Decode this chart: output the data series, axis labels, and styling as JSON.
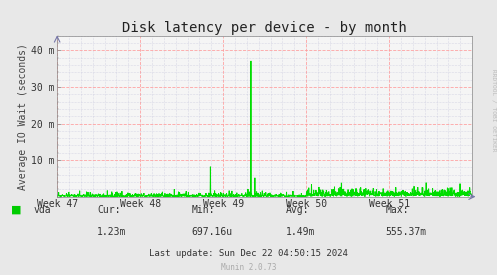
{
  "title": "Disk latency per device - by month",
  "ylabel": "Average IO Wait (seconds)",
  "background_color": "#e8e8e8",
  "plot_bg_color": "#f5f5f5",
  "line_color": "#00dd00",
  "grid_major_color": "#ff9999",
  "grid_minor_color": "#aaaacc",
  "ytick_labels": [
    "",
    "10 m",
    "20 m",
    "30 m",
    "40 m"
  ],
  "ytick_values": [
    0,
    0.01,
    0.02,
    0.03,
    0.04
  ],
  "ylim": [
    0,
    0.044
  ],
  "xtick_labels": [
    "Week 47",
    "Week 48",
    "Week 49",
    "Week 50",
    "Week 51"
  ],
  "xtick_positions": [
    0,
    168,
    336,
    504,
    672
  ],
  "xlim": [
    0,
    840
  ],
  "legend_label": "vda",
  "legend_color": "#00cc00",
  "stats_cur": "Cur:",
  "stats_cur_val": "1.23m",
  "stats_min": "Min:",
  "stats_min_val": "697.16u",
  "stats_avg": "Avg:",
  "stats_avg_val": "1.49m",
  "stats_max": "Max:",
  "stats_max_val": "555.37m",
  "last_update": "Last update: Sun Dec 22 04:50:15 2024",
  "munin_version": "Munin 2.0.73",
  "rrdtool_label": "RRDTOOL / TOBI OETIKER",
  "title_fontsize": 10,
  "axis_label_fontsize": 7,
  "tick_fontsize": 7,
  "stats_fontsize": 7
}
